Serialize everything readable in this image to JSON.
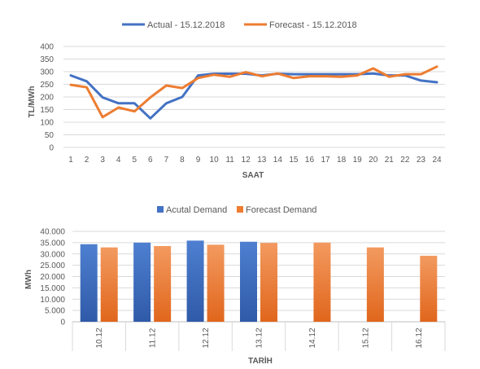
{
  "chart_data": [
    {
      "type": "line",
      "xlabel": "SAAT",
      "ylabel": "TL/MWh",
      "ylim": [
        0,
        400
      ],
      "y_ticks": [
        "0",
        "50",
        "100",
        "150",
        "200",
        "250",
        "300",
        "350",
        "400"
      ],
      "categories": [
        "1",
        "2",
        "3",
        "4",
        "5",
        "6",
        "7",
        "8",
        "9",
        "10",
        "11",
        "12",
        "13",
        "14",
        "15",
        "16",
        "17",
        "18",
        "19",
        "20",
        "21",
        "22",
        "23",
        "24"
      ],
      "grid": true,
      "legend_position": "top",
      "series": [
        {
          "name": "Actual - 15.12.2018",
          "color": "#4472C4",
          "values": [
            285,
            262,
            198,
            175,
            175,
            115,
            175,
            200,
            285,
            292,
            292,
            292,
            285,
            292,
            290,
            290,
            290,
            290,
            290,
            293,
            285,
            285,
            265,
            258
          ]
        },
        {
          "name": "Forecast - 15.12.2018",
          "color": "#ED7D31",
          "values": [
            248,
            238,
            120,
            158,
            143,
            198,
            245,
            235,
            275,
            288,
            280,
            298,
            282,
            293,
            275,
            282,
            282,
            280,
            285,
            313,
            280,
            290,
            290,
            320
          ]
        }
      ]
    },
    {
      "type": "bar",
      "xlabel": "TARİH",
      "ylabel": "MWh",
      "ylim": [
        0,
        40000
      ],
      "y_ticks": [
        "0",
        "5.000",
        "10.000",
        "15.000",
        "20.000",
        "25.000",
        "30.000",
        "35.000",
        "40.000"
      ],
      "categories": [
        "10.12",
        "11.12",
        "12.12",
        "13.12",
        "14.12",
        "15.12",
        "16.12"
      ],
      "grid": true,
      "legend_position": "top",
      "series": [
        {
          "name": "Acutal Demand",
          "color": "#4472C4",
          "values": [
            34300,
            35000,
            35900,
            35400,
            null,
            null,
            null
          ]
        },
        {
          "name": "Forecast Demand",
          "color": "#ED7D31",
          "values": [
            32900,
            33500,
            34100,
            34900,
            35000,
            32900,
            29200
          ]
        }
      ]
    }
  ]
}
